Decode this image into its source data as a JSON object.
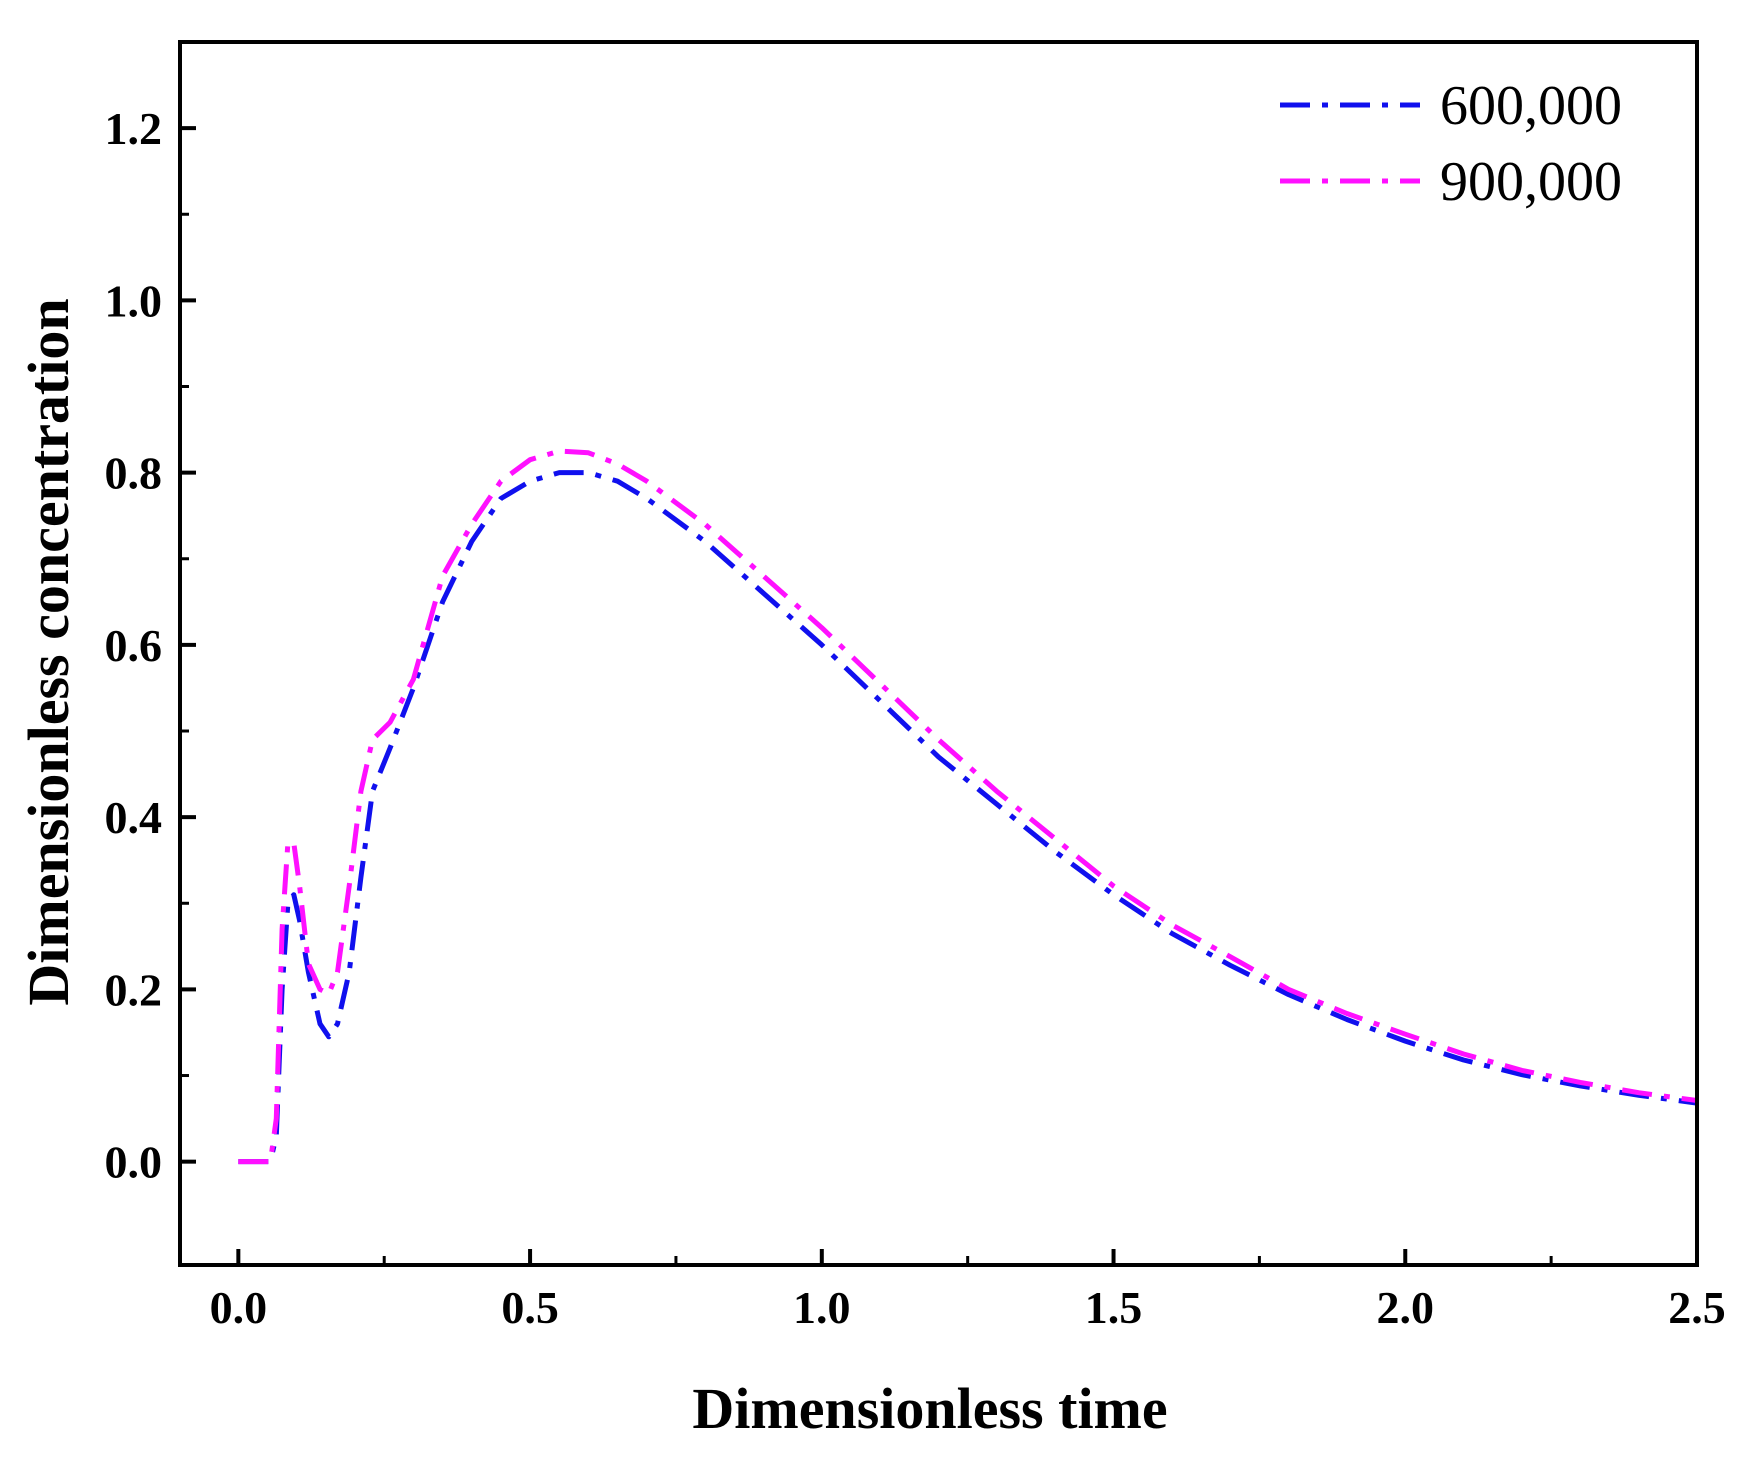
{
  "chart_data": {
    "type": "line",
    "title": "",
    "xlabel": "Dimensionless time",
    "ylabel": "Dimensionless concentration",
    "xlim": [
      -0.1,
      2.5
    ],
    "ylim": [
      -0.12,
      1.3
    ],
    "x_ticks": [
      0.0,
      0.5,
      1.0,
      1.5,
      2.0,
      2.5
    ],
    "x_tick_labels": [
      "0.0",
      "0.5",
      "1.0",
      "1.5",
      "2.0",
      "2.5"
    ],
    "y_ticks": [
      0.0,
      0.2,
      0.4,
      0.6,
      0.8,
      1.0,
      1.2
    ],
    "y_tick_labels": [
      "0.0",
      "0.2",
      "0.4",
      "0.6",
      "0.8",
      "1.0",
      "1.2"
    ],
    "grid": false,
    "legend_position": "top-right",
    "series": [
      {
        "name": "600,000",
        "color": "#1010ee",
        "dash": "dash-dot",
        "x": [
          0.0,
          0.03,
          0.055,
          0.065,
          0.075,
          0.085,
          0.095,
          0.105,
          0.12,
          0.14,
          0.155,
          0.17,
          0.19,
          0.21,
          0.23,
          0.26,
          0.3,
          0.35,
          0.4,
          0.45,
          0.5,
          0.55,
          0.6,
          0.65,
          0.7,
          0.8,
          0.9,
          1.0,
          1.1,
          1.2,
          1.3,
          1.4,
          1.5,
          1.6,
          1.7,
          1.8,
          1.9,
          2.0,
          2.1,
          2.2,
          2.3,
          2.4,
          2.5
        ],
        "y": [
          0.0,
          0.0,
          0.0,
          0.03,
          0.2,
          0.3,
          0.31,
          0.28,
          0.22,
          0.16,
          0.145,
          0.16,
          0.22,
          0.33,
          0.43,
          0.48,
          0.55,
          0.65,
          0.72,
          0.77,
          0.79,
          0.8,
          0.8,
          0.79,
          0.77,
          0.72,
          0.66,
          0.6,
          0.535,
          0.47,
          0.415,
          0.36,
          0.31,
          0.265,
          0.228,
          0.194,
          0.165,
          0.14,
          0.118,
          0.101,
          0.088,
          0.077,
          0.068
        ]
      },
      {
        "name": "900,000",
        "color": "#ff10ff",
        "dash": "dash-dot",
        "x": [
          0.0,
          0.03,
          0.055,
          0.065,
          0.075,
          0.085,
          0.095,
          0.105,
          0.12,
          0.14,
          0.155,
          0.17,
          0.19,
          0.21,
          0.23,
          0.26,
          0.3,
          0.35,
          0.4,
          0.45,
          0.5,
          0.55,
          0.6,
          0.65,
          0.7,
          0.8,
          0.9,
          1.0,
          1.1,
          1.2,
          1.3,
          1.4,
          1.5,
          1.6,
          1.7,
          1.8,
          1.9,
          2.0,
          2.1,
          2.2,
          2.3,
          2.4,
          2.5
        ],
        "y": [
          0.0,
          0.0,
          0.0,
          0.05,
          0.27,
          0.37,
          0.37,
          0.32,
          0.23,
          0.2,
          0.195,
          0.22,
          0.32,
          0.43,
          0.49,
          0.51,
          0.56,
          0.68,
          0.74,
          0.79,
          0.815,
          0.825,
          0.823,
          0.81,
          0.79,
          0.74,
          0.68,
          0.62,
          0.555,
          0.49,
          0.43,
          0.375,
          0.32,
          0.275,
          0.238,
          0.2,
          0.172,
          0.148,
          0.125,
          0.106,
          0.092,
          0.08,
          0.071
        ]
      }
    ]
  }
}
